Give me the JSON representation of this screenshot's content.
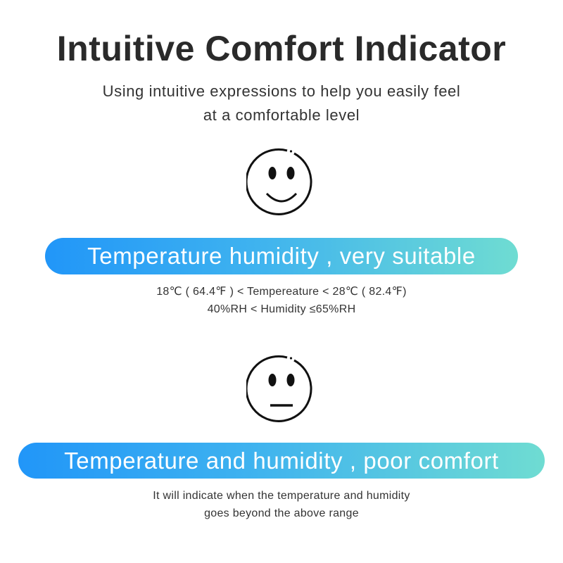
{
  "title": "Intuitive Comfort Indicator",
  "subtitle": [
    "Using intuitive expressions to help you easily feel",
    "at a comfortable level"
  ],
  "states": [
    {
      "face_icon": "smiling-face-icon",
      "label": "Temperature humidity , very suitable",
      "details": [
        "18℃ ( 64.4℉ ) < Tempereature < 28℃ ( 82.4℉)",
        "40%RH  <  Humidity ≤65%RH"
      ]
    },
    {
      "face_icon": "neutral-face-icon",
      "label": "Temperature and humidity , poor comfort",
      "details": [
        "It will indicate when the temperature and humidity",
        "goes beyond the above range"
      ]
    }
  ],
  "colors": {
    "gradient_start": "#2196f8",
    "gradient_end": "#6fdcd2"
  }
}
